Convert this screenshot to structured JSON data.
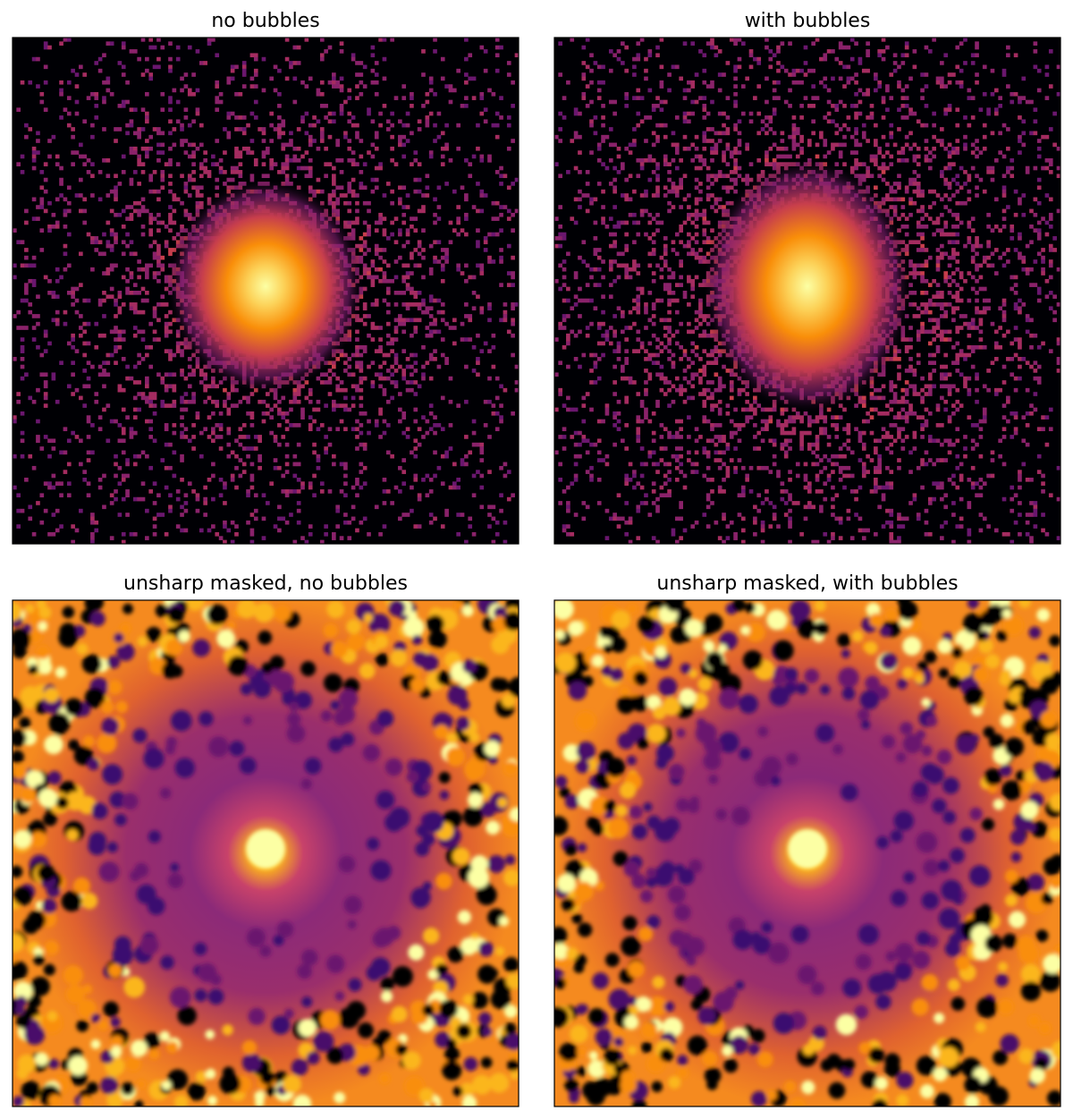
{
  "panels": [
    {
      "title": "no bubbles"
    },
    {
      "title": "with bubbles"
    },
    {
      "title": "unsharp masked, no bubbles"
    },
    {
      "title": "unsharp masked, with bubbles"
    }
  ]
}
